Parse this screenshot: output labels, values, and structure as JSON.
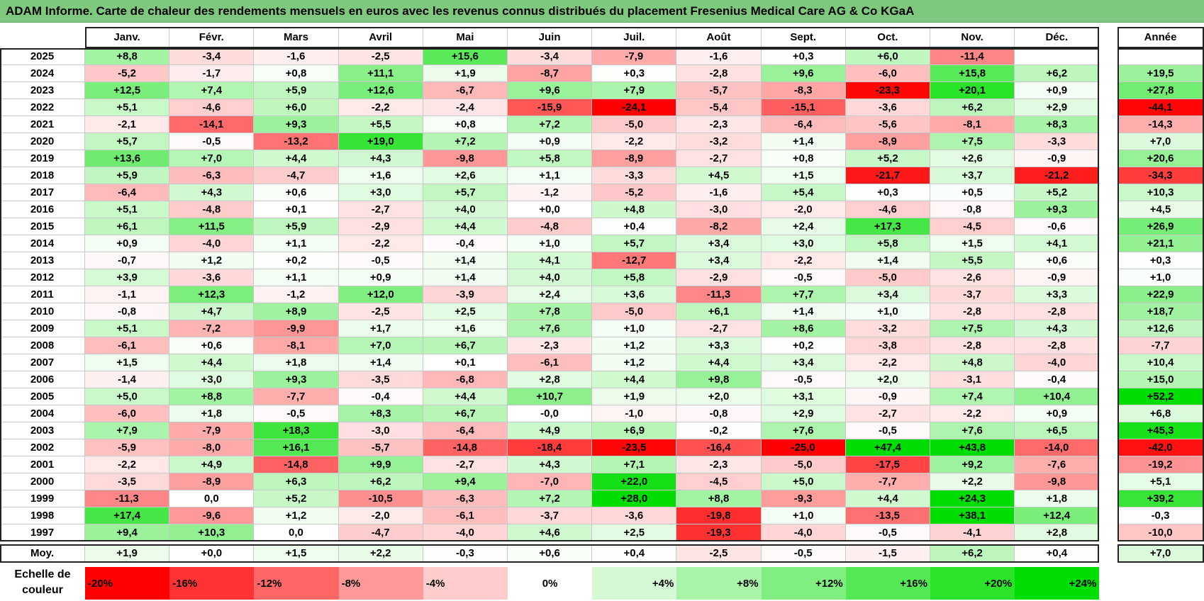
{
  "title": "ADAM Informe. Carte de chaleur des rendements mensuels en euros avec les revenus connus distribués du placement Fresenius Medical Care AG & Co KGaA",
  "chart_data": {
    "type": "heatmap",
    "columns": [
      "Janv.",
      "Févr.",
      "Mars",
      "Avril",
      "Mai",
      "Juin",
      "Juil.",
      "Août",
      "Sept.",
      "Oct.",
      "Nov.",
      "Déc."
    ],
    "annual_header": "Année",
    "avg_label": "Moy.",
    "rows": [
      {
        "year": "2025",
        "values": [
          "+8,8",
          "-3,4",
          "-1,6",
          "-2,5",
          "+15,6",
          "-3,4",
          "-7,9",
          "-1,6",
          "+0,3",
          "+6,0",
          "-11,4",
          ""
        ],
        "annual": ""
      },
      {
        "year": "2024",
        "values": [
          "-5,2",
          "-1,7",
          "+0,8",
          "+11,1",
          "+1,9",
          "-8,7",
          "+0,3",
          "-2,8",
          "+9,6",
          "-6,0",
          "+15,8",
          "+6,2"
        ],
        "annual": "+19,5"
      },
      {
        "year": "2023",
        "values": [
          "+12,5",
          "+7,4",
          "+5,9",
          "+12,6",
          "-6,7",
          "+9,6",
          "+7,9",
          "-5,7",
          "-8,3",
          "-23,3",
          "+20,1",
          "+0,9"
        ],
        "annual": "+27,8"
      },
      {
        "year": "2022",
        "values": [
          "+5,1",
          "-4,6",
          "+6,0",
          "-2,2",
          "-2,4",
          "-15,9",
          "-24,1",
          "-5,4",
          "-15,1",
          "-3,6",
          "+6,2",
          "+2,9"
        ],
        "annual": "-44,1"
      },
      {
        "year": "2021",
        "values": [
          "-2,1",
          "-14,1",
          "+9,3",
          "+5,5",
          "+0,8",
          "+7,2",
          "-5,0",
          "-2,3",
          "-6,4",
          "-5,6",
          "-8,1",
          "+8,3"
        ],
        "annual": "-14,3"
      },
      {
        "year": "2020",
        "values": [
          "+5,7",
          "-0,5",
          "-13,2",
          "+19,0",
          "+7,2",
          "+0,9",
          "-2,2",
          "-3,2",
          "+1,4",
          "-8,9",
          "+7,5",
          "-3,3"
        ],
        "annual": "+7,0"
      },
      {
        "year": "2019",
        "values": [
          "+13,6",
          "+7,0",
          "+4,4",
          "+4,3",
          "-9,8",
          "+5,8",
          "-8,9",
          "-2,7",
          "+0,8",
          "+5,2",
          "+2,6",
          "-0,9"
        ],
        "annual": "+20,6"
      },
      {
        "year": "2018",
        "values": [
          "+5,9",
          "-6,3",
          "-4,7",
          "+1,6",
          "+2,6",
          "+1,1",
          "-3,3",
          "+4,5",
          "+1,5",
          "-21,7",
          "+3,7",
          "-21,2"
        ],
        "annual": "-34,3"
      },
      {
        "year": "2017",
        "values": [
          "-6,4",
          "+4,3",
          "+0,6",
          "+3,0",
          "+5,7",
          "-1,2",
          "-5,2",
          "-1,6",
          "+5,4",
          "+0,3",
          "+0,5",
          "+5,2"
        ],
        "annual": "+10,3"
      },
      {
        "year": "2016",
        "values": [
          "+5,1",
          "-4,8",
          "+0,1",
          "-2,7",
          "+4,0",
          "+0,0",
          "+4,8",
          "-3,0",
          "-2,0",
          "-4,6",
          "-0,8",
          "+9,3"
        ],
        "annual": "+4,5"
      },
      {
        "year": "2015",
        "values": [
          "+6,1",
          "+11,5",
          "+5,9",
          "-2,9",
          "+4,4",
          "-4,8",
          "+0,4",
          "-8,2",
          "+2,4",
          "+17,3",
          "-4,5",
          "-0,6"
        ],
        "annual": "+26,9"
      },
      {
        "year": "2014",
        "values": [
          "+0,9",
          "-4,0",
          "+1,1",
          "-2,2",
          "-0,4",
          "+1,0",
          "+5,7",
          "+3,4",
          "+3,0",
          "+5,8",
          "+1,5",
          "+4,1"
        ],
        "annual": "+21,1"
      },
      {
        "year": "2013",
        "values": [
          "-0,7",
          "+1,2",
          "+0,2",
          "-0,5",
          "+1,4",
          "+4,1",
          "-12,7",
          "+3,4",
          "-2,2",
          "+1,4",
          "+5,5",
          "+0,6"
        ],
        "annual": "+0,3"
      },
      {
        "year": "2012",
        "values": [
          "+3,9",
          "-3,6",
          "+1,1",
          "+0,9",
          "+1,4",
          "+4,0",
          "+5,8",
          "-2,9",
          "-0,5",
          "-5,0",
          "-2,6",
          "-0,9"
        ],
        "annual": "+1,0"
      },
      {
        "year": "2011",
        "values": [
          "-1,1",
          "+12,3",
          "-1,2",
          "+12,0",
          "-3,9",
          "+2,4",
          "+3,6",
          "-11,3",
          "+7,7",
          "+3,4",
          "-3,7",
          "+3,3"
        ],
        "annual": "+22,9"
      },
      {
        "year": "2010",
        "values": [
          "-0,8",
          "+4,7",
          "+8,9",
          "-2,5",
          "+2,5",
          "+7,8",
          "-5,0",
          "+6,1",
          "+1,4",
          "+1,0",
          "-2,8",
          "-2,8"
        ],
        "annual": "+18,7"
      },
      {
        "year": "2009",
        "values": [
          "+5,1",
          "-7,2",
          "-9,9",
          "+1,7",
          "+1,6",
          "+7,6",
          "+1,0",
          "-2,7",
          "+8,6",
          "-3,2",
          "+7,5",
          "+4,3"
        ],
        "annual": "+12,6"
      },
      {
        "year": "2008",
        "values": [
          "-6,1",
          "+0,6",
          "-8,1",
          "+7,0",
          "+6,7",
          "-2,3",
          "+1,2",
          "+3,3",
          "+0,2",
          "-3,8",
          "-2,8",
          "-2,8"
        ],
        "annual": "-7,7"
      },
      {
        "year": "2007",
        "values": [
          "+1,5",
          "+4,4",
          "+1,8",
          "+1,4",
          "+0,1",
          "-6,1",
          "+1,2",
          "+4,4",
          "+3,4",
          "-2,2",
          "+4,8",
          "-4,0"
        ],
        "annual": "+10,4"
      },
      {
        "year": "2006",
        "values": [
          "-1,4",
          "+3,0",
          "+9,3",
          "-3,5",
          "-6,8",
          "+2,8",
          "+4,4",
          "+9,8",
          "-0,5",
          "+2,0",
          "-3,1",
          "-0,4"
        ],
        "annual": "+15,0"
      },
      {
        "year": "2005",
        "values": [
          "+5,0",
          "+8,8",
          "-7,7",
          "-0,4",
          "+4,4",
          "+10,7",
          "+1,9",
          "+2,0",
          "+3,1",
          "-0,9",
          "+7,4",
          "+10,4"
        ],
        "annual": "+52,2"
      },
      {
        "year": "2004",
        "values": [
          "-6,0",
          "+1,8",
          "-0,5",
          "+8,3",
          "+6,7",
          "-0,0",
          "-1,0",
          "-0,8",
          "+2,9",
          "-2,7",
          "-2,2",
          "+0,9"
        ],
        "annual": "+6,8"
      },
      {
        "year": "2003",
        "values": [
          "+7,9",
          "-7,9",
          "+18,3",
          "-3,0",
          "-6,4",
          "+4,9",
          "+6,9",
          "-0,2",
          "+7,6",
          "-0,5",
          "+7,6",
          "+6,5"
        ],
        "annual": "+45,3"
      },
      {
        "year": "2002",
        "values": [
          "-5,9",
          "-8,0",
          "+16,1",
          "-5,7",
          "-14,8",
          "-18,4",
          "-23,5",
          "-16,4",
          "-25,0",
          "+47,4",
          "+43,8",
          "-14,0"
        ],
        "annual": "-42,0"
      },
      {
        "year": "2001",
        "values": [
          "-2,2",
          "+4,9",
          "-14,8",
          "+9,9",
          "-2,7",
          "+4,3",
          "+7,1",
          "-2,3",
          "-5,0",
          "-17,5",
          "+9,2",
          "-7,6"
        ],
        "annual": "-19,2"
      },
      {
        "year": "2000",
        "values": [
          "-3,5",
          "-8,9",
          "+6,3",
          "+6,2",
          "+9,4",
          "-7,0",
          "+22,0",
          "-4,5",
          "+5,0",
          "-7,7",
          "+2,2",
          "-9,8"
        ],
        "annual": "+5,1"
      },
      {
        "year": "1999",
        "values": [
          "-11,3",
          "0,0",
          "+5,2",
          "-10,5",
          "-6,3",
          "+7,2",
          "+28,0",
          "+8,8",
          "-9,3",
          "+4,4",
          "+24,3",
          "+1,8"
        ],
        "annual": "+39,2"
      },
      {
        "year": "1998",
        "values": [
          "+17,4",
          "-9,6",
          "+1,2",
          "-2,0",
          "-6,1",
          "-3,7",
          "-3,6",
          "-19,8",
          "+1,0",
          "-13,5",
          "+38,1",
          "+12,4"
        ],
        "annual": "-0,3"
      },
      {
        "year": "1997",
        "values": [
          "+9,4",
          "+10,3",
          "0,0",
          "-4,7",
          "-4,0",
          "+4,6",
          "+2,5",
          "-19,3",
          "-4,0",
          "-0,5",
          "-4,1",
          "+2,8"
        ],
        "annual": "-10,0"
      }
    ],
    "averages": [
      "+1,9",
      "+0,0",
      "+1,5",
      "+2,2",
      "-0,3",
      "+0,6",
      "+0,4",
      "-2,5",
      "-0,5",
      "-1,5",
      "+6,2",
      "+0,4"
    ],
    "average_annual": "+7,0",
    "scale_label": [
      "Echelle de",
      "couleur"
    ],
    "scale": [
      "-20%",
      "-16%",
      "-12%",
      "-8%",
      "-4%",
      "0%",
      "+4%",
      "+8%",
      "+12%",
      "+16%",
      "+20%",
      "+24%"
    ],
    "scale_values": [
      -20,
      -16,
      -12,
      -8,
      -4,
      0,
      4,
      8,
      12,
      16,
      20,
      24
    ],
    "colors": {
      "neg_max": "#ff0000",
      "pos_max": "#00dd00",
      "neutral": "#ffffff",
      "title_bg": "#7fc97f"
    }
  }
}
